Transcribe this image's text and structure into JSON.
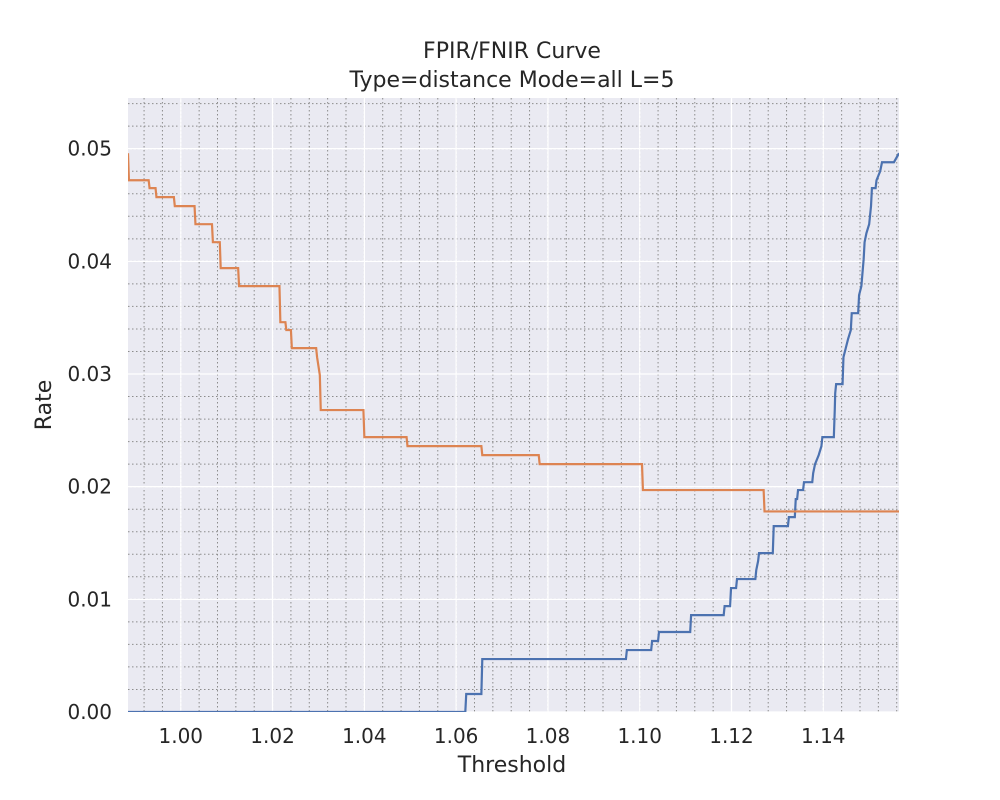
{
  "chart_data": {
    "type": "line",
    "title": "FPIR/FNIR Curve",
    "subtitle": "Type=distance Mode=all L=5",
    "xlabel": "Threshold",
    "ylabel": "Rate",
    "xlim": [
      0.9885,
      1.1565
    ],
    "ylim": [
      0.0,
      0.0545
    ],
    "x_ticks": [
      1.0,
      1.02,
      1.04,
      1.06,
      1.08,
      1.1,
      1.12,
      1.14
    ],
    "x_tick_labels": [
      "1.00",
      "1.02",
      "1.04",
      "1.06",
      "1.08",
      "1.10",
      "1.12",
      "1.14"
    ],
    "y_ticks": [
      0.0,
      0.01,
      0.02,
      0.03,
      0.04,
      0.05
    ],
    "y_tick_labels": [
      "0.00",
      "0.01",
      "0.02",
      "0.03",
      "0.04",
      "0.05"
    ],
    "grid": true,
    "minor_grid": true,
    "background": "#eaeaf2",
    "series": [
      {
        "color": "#4c72b0",
        "step": true,
        "points": [
          [
            0.9885,
            0.0
          ],
          [
            1.062,
            0.0
          ],
          [
            1.0622,
            0.0016
          ],
          [
            1.0655,
            0.0016
          ],
          [
            1.0657,
            0.0047
          ],
          [
            1.097,
            0.0047
          ],
          [
            1.0972,
            0.0055
          ],
          [
            1.1025,
            0.0055
          ],
          [
            1.1027,
            0.0063
          ],
          [
            1.104,
            0.0063
          ],
          [
            1.1042,
            0.0071
          ],
          [
            1.111,
            0.0071
          ],
          [
            1.1112,
            0.0086
          ],
          [
            1.1183,
            0.0086
          ],
          [
            1.1185,
            0.0094
          ],
          [
            1.1197,
            0.0094
          ],
          [
            1.1199,
            0.011
          ],
          [
            1.121,
            0.011
          ],
          [
            1.1212,
            0.0118
          ],
          [
            1.1252,
            0.0118
          ],
          [
            1.1254,
            0.0126
          ],
          [
            1.1258,
            0.0134
          ],
          [
            1.126,
            0.0141
          ],
          [
            1.129,
            0.0141
          ],
          [
            1.1292,
            0.0165
          ],
          [
            1.1323,
            0.0165
          ],
          [
            1.1325,
            0.0173
          ],
          [
            1.1338,
            0.0173
          ],
          [
            1.134,
            0.0189
          ],
          [
            1.1343,
            0.0189
          ],
          [
            1.1345,
            0.0197
          ],
          [
            1.1356,
            0.0197
          ],
          [
            1.1358,
            0.0204
          ],
          [
            1.1376,
            0.0204
          ],
          [
            1.1378,
            0.0212
          ],
          [
            1.1382,
            0.022
          ],
          [
            1.139,
            0.0228
          ],
          [
            1.1396,
            0.0236
          ],
          [
            1.1398,
            0.0244
          ],
          [
            1.1423,
            0.0244
          ],
          [
            1.1425,
            0.0268
          ],
          [
            1.1426,
            0.0283
          ],
          [
            1.1428,
            0.0291
          ],
          [
            1.1442,
            0.0291
          ],
          [
            1.1444,
            0.0315
          ],
          [
            1.1449,
            0.0323
          ],
          [
            1.1454,
            0.0331
          ],
          [
            1.146,
            0.0339
          ],
          [
            1.1462,
            0.0354
          ],
          [
            1.1476,
            0.0354
          ],
          [
            1.1478,
            0.037
          ],
          [
            1.1483,
            0.0378
          ],
          [
            1.1488,
            0.0402
          ],
          [
            1.149,
            0.0417
          ],
          [
            1.1494,
            0.0425
          ],
          [
            1.15,
            0.0433
          ],
          [
            1.1504,
            0.0449
          ],
          [
            1.1506,
            0.0465
          ],
          [
            1.1514,
            0.0465
          ],
          [
            1.1516,
            0.0472
          ],
          [
            1.1524,
            0.048
          ],
          [
            1.1528,
            0.0488
          ],
          [
            1.1554,
            0.0488
          ],
          [
            1.1565,
            0.0496
          ]
        ]
      },
      {
        "color": "#dd8452",
        "step": true,
        "points": [
          [
            0.9885,
            0.0496
          ],
          [
            0.9887,
            0.0472
          ],
          [
            0.993,
            0.0472
          ],
          [
            0.9932,
            0.0465
          ],
          [
            0.9945,
            0.0465
          ],
          [
            0.9947,
            0.0457
          ],
          [
            0.9985,
            0.0457
          ],
          [
            0.9987,
            0.0449
          ],
          [
            1.003,
            0.0449
          ],
          [
            1.0032,
            0.0433
          ],
          [
            1.0068,
            0.0433
          ],
          [
            1.007,
            0.0417
          ],
          [
            1.0085,
            0.0417
          ],
          [
            1.0087,
            0.0394
          ],
          [
            1.0125,
            0.0394
          ],
          [
            1.0127,
            0.0378
          ],
          [
            1.0215,
            0.0378
          ],
          [
            1.0217,
            0.0346
          ],
          [
            1.0228,
            0.0346
          ],
          [
            1.023,
            0.0339
          ],
          [
            1.024,
            0.0339
          ],
          [
            1.0242,
            0.0323
          ],
          [
            1.0295,
            0.0323
          ],
          [
            1.0297,
            0.0315
          ],
          [
            1.0303,
            0.0299
          ],
          [
            1.0305,
            0.0268
          ],
          [
            1.0398,
            0.0268
          ],
          [
            1.04,
            0.0244
          ],
          [
            1.0492,
            0.0244
          ],
          [
            1.0494,
            0.0236
          ],
          [
            1.0655,
            0.0236
          ],
          [
            1.0657,
            0.0228
          ],
          [
            1.078,
            0.0228
          ],
          [
            1.0782,
            0.022
          ],
          [
            1.1005,
            0.022
          ],
          [
            1.1007,
            0.0197
          ],
          [
            1.127,
            0.0197
          ],
          [
            1.1272,
            0.0178
          ],
          [
            1.1565,
            0.0178
          ]
        ]
      }
    ]
  }
}
